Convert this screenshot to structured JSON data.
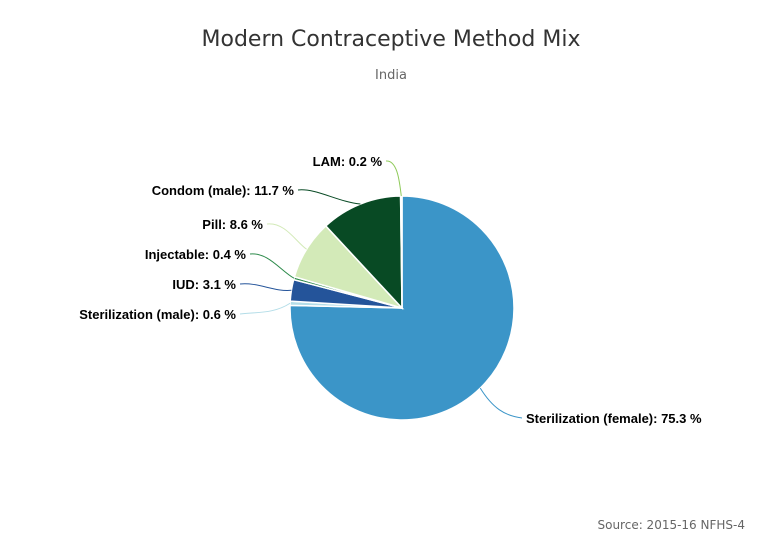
{
  "chart_data": {
    "type": "pie",
    "title": "Modern Contraceptive Method Mix",
    "subtitle": "India",
    "credit": "Source: 2015-16 NFHS-4",
    "value_suffix": " %",
    "slices": [
      {
        "name": "Sterilization (female)",
        "value": 75.3,
        "color": "#3b95c8"
      },
      {
        "name": "Sterilization (male)",
        "value": 0.6,
        "color": "#b3dde8"
      },
      {
        "name": "IUD",
        "value": 3.1,
        "color": "#24549a"
      },
      {
        "name": "Injectable",
        "value": 0.4,
        "color": "#2c8a4a"
      },
      {
        "name": "Pill",
        "value": 8.6,
        "color": "#d3eab8"
      },
      {
        "name": "Condom (male)",
        "value": 11.7,
        "color": "#084a24"
      },
      {
        "name": "LAM",
        "value": 0.2,
        "color": "#8fca5a"
      }
    ]
  }
}
